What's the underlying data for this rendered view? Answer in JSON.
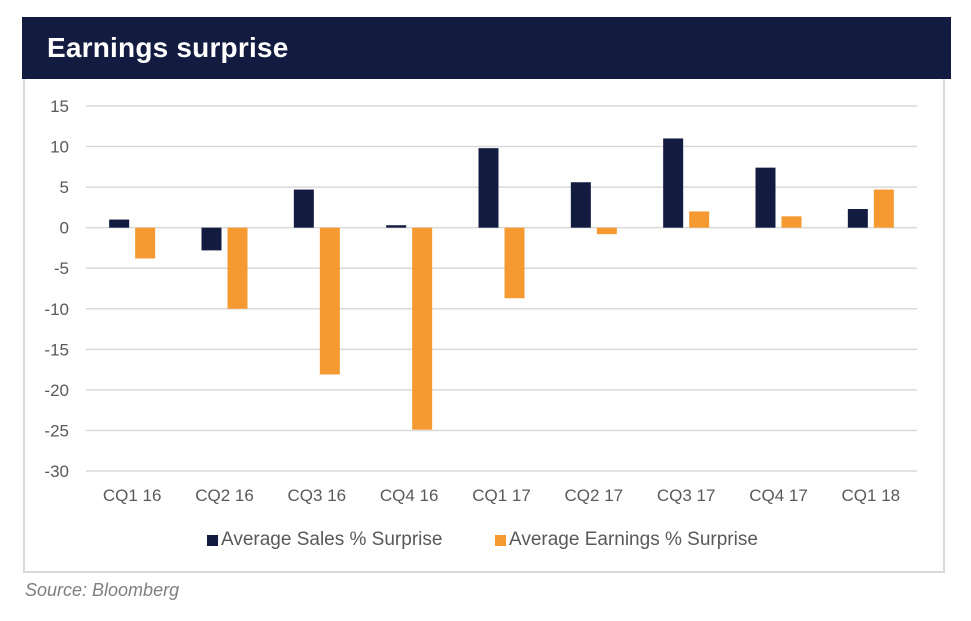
{
  "header": {
    "title": "Earnings surprise"
  },
  "source": "Source: Bloomberg",
  "colors": {
    "sales": "#131c40",
    "earnings": "#f59a31",
    "grid": "#d9d9d9",
    "header_bg": "#131c40"
  },
  "legend": [
    {
      "label": "Average Sales % Surprise",
      "color": "#131c40"
    },
    {
      "label": "Average Earnings % Surprise",
      "color": "#f59a31"
    }
  ],
  "chart_data": {
    "type": "bar",
    "title": "Earnings surprise",
    "xlabel": "",
    "ylabel": "",
    "ylim": [
      -30,
      15
    ],
    "yticks": [
      15,
      10,
      5,
      0,
      -5,
      -10,
      -15,
      -20,
      -25,
      -30
    ],
    "grid": true,
    "legend_position": "bottom",
    "categories": [
      "CQ1 16",
      "CQ2 16",
      "CQ3 16",
      "CQ4 16",
      "CQ1 17",
      "CQ2 17",
      "CQ3 17",
      "CQ4 17",
      "CQ1 18"
    ],
    "series": [
      {
        "name": "Average Sales % Surprise",
        "color": "#131c40",
        "values": [
          1.0,
          -2.8,
          4.7,
          0.3,
          9.8,
          5.6,
          11.0,
          7.4,
          2.3
        ]
      },
      {
        "name": "Average Earnings % Surprise",
        "color": "#f59a31",
        "values": [
          -3.8,
          -10.0,
          -18.1,
          -24.9,
          -8.7,
          -0.8,
          2.0,
          1.4,
          4.7
        ]
      }
    ]
  }
}
